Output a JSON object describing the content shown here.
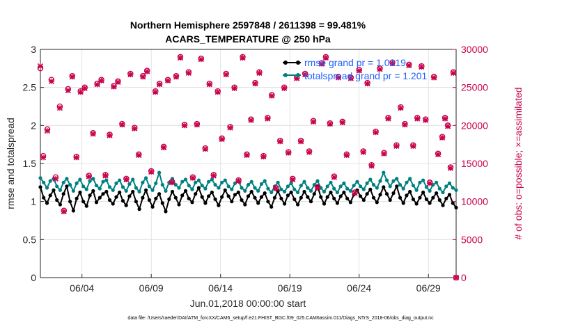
{
  "chart_data": {
    "type": "line",
    "title": "Northern Hemisphere 2597848 / 2611398 = 99.481%",
    "subtitle": "ACARS_TEMPERATURE @ 250 hPa",
    "xlabel": "Jun.01,2018 00:00:00 start",
    "ylabel": "rmse and totalspread",
    "ylabel_right": "# of obs: o=possible; ×=assimilated",
    "footnote": "data file: /Users/raeder/DAI/ATM_forcXX/CAM6_setup/f.e21.FHIST_BGC.f09_025.CAM6assim.011/Diags_NTrS_2018-06/obs_diag_output.nc",
    "xlim": [
      1,
      31
    ],
    "ylim": [
      0,
      3
    ],
    "ylim_right": [
      0,
      30000
    ],
    "x_ticks": [
      {
        "x": 4,
        "label": "06/04"
      },
      {
        "x": 9,
        "label": "06/09"
      },
      {
        "x": 14,
        "label": "06/14"
      },
      {
        "x": 19,
        "label": "06/19"
      },
      {
        "x": 24,
        "label": "06/24"
      },
      {
        "x": 29,
        "label": "06/29"
      }
    ],
    "y_ticks": [
      "0",
      "0.5",
      "1",
      "1.5",
      "2",
      "2.5",
      "3"
    ],
    "y_ticks_right": [
      "0",
      "5000",
      "10000",
      "15000",
      "20000",
      "25000",
      "30000"
    ],
    "grid": true,
    "legend_position": "top-right",
    "series": [
      {
        "name": "rmse",
        "legend": "rmse grand pr = 1.0219",
        "axis": "left",
        "color": "#000000",
        "values": [
          1.19,
          1.05,
          0.98,
          1.08,
          1.15,
          1.02,
          0.96,
          1.1,
          1.2,
          1.0,
          0.88,
          1.04,
          1.12,
          1.0,
          0.94,
          1.08,
          1.14,
          0.99,
          1.05,
          1.1,
          1.13,
          1.02,
          0.97,
          1.06,
          1.12,
          1.01,
          0.95,
          1.07,
          1.13,
          1.0,
          0.9,
          1.05,
          1.15,
          1.02,
          0.93,
          1.04,
          1.1,
          0.98,
          0.87,
          1.03,
          1.13,
          1.05,
          0.96,
          1.08,
          1.14,
          1.04,
          0.99,
          1.1,
          1.18,
          1.06,
          0.98,
          1.07,
          1.12,
          1.03,
          0.95,
          1.06,
          1.15,
          1.07,
          1.0,
          1.09,
          1.12,
          1.02,
          0.96,
          1.07,
          1.13,
          1.05,
          0.98,
          1.06,
          1.11,
          1.0,
          0.93,
          1.05,
          1.14,
          1.04,
          0.97,
          1.08,
          1.12,
          1.03,
          0.96,
          1.05,
          1.13,
          1.06,
          1.0,
          1.1,
          1.2,
          1.06,
          0.97,
          1.06,
          1.12,
          1.04,
          0.98,
          1.07,
          1.12,
          1.04,
          0.99,
          1.09,
          1.15,
          1.07,
          1.02,
          1.1,
          1.16,
          1.05,
          0.99,
          1.09,
          1.19,
          1.1,
          1.02,
          1.11,
          1.2,
          1.05,
          0.98,
          1.08,
          1.13,
          1.03,
          0.97,
          1.05,
          1.12,
          1.03,
          0.98,
          1.05,
          1.11,
          1.02,
          0.95,
          1.04,
          1.09,
          0.98,
          0.92
        ]
      },
      {
        "name": "totalspread",
        "legend": "totalspread grand pr = 1.201",
        "axis": "left",
        "color": "#008080",
        "values": [
          1.31,
          1.25,
          1.18,
          1.27,
          1.3,
          1.2,
          1.15,
          1.25,
          1.3,
          1.22,
          1.14,
          1.24,
          1.29,
          1.2,
          1.16,
          1.27,
          1.3,
          1.21,
          1.17,
          1.26,
          1.28,
          1.19,
          1.15,
          1.24,
          1.28,
          1.19,
          1.14,
          1.23,
          1.29,
          1.18,
          1.13,
          1.25,
          1.31,
          1.2,
          1.15,
          1.24,
          1.38,
          1.22,
          1.14,
          1.25,
          1.3,
          1.22,
          1.18,
          1.26,
          1.29,
          1.21,
          1.16,
          1.25,
          1.28,
          1.21,
          1.17,
          1.26,
          1.29,
          1.22,
          1.18,
          1.25,
          1.28,
          1.2,
          1.16,
          1.24,
          1.27,
          1.18,
          1.14,
          1.22,
          1.26,
          1.18,
          1.14,
          1.23,
          1.27,
          1.17,
          1.12,
          1.2,
          1.25,
          1.16,
          1.13,
          1.2,
          1.24,
          1.16,
          1.12,
          1.21,
          1.26,
          1.18,
          1.14,
          1.22,
          1.27,
          1.18,
          1.13,
          1.2,
          1.25,
          1.17,
          1.12,
          1.2,
          1.24,
          1.17,
          1.14,
          1.21,
          1.26,
          1.2,
          1.16,
          1.24,
          1.29,
          1.22,
          1.18,
          1.27,
          1.38,
          1.28,
          1.2,
          1.27,
          1.3,
          1.22,
          1.17,
          1.25,
          1.3,
          1.21,
          1.15,
          1.25,
          1.28,
          1.19,
          1.14,
          1.22,
          1.25,
          1.17,
          1.12,
          1.2,
          1.24,
          1.18,
          1.15
        ]
      },
      {
        "name": "obs_possible",
        "axis": "right",
        "marker": "o",
        "color": "#c8004b",
        "values": [
          27500,
          16000,
          19500,
          26000,
          13200,
          22500,
          8800,
          24800,
          26500,
          15900,
          24500,
          25000,
          13400,
          19000,
          25500,
          26000,
          13500,
          18800,
          25200,
          25800,
          20200,
          13000,
          26800,
          19700,
          16200,
          26500,
          27200,
          14000,
          24500,
          25500,
          17200,
          26000,
          12600,
          26500,
          29000,
          20100,
          27000,
          13200,
          20200,
          28800,
          17000,
          25500,
          13500,
          24500,
          18300,
          26800,
          19800,
          25000,
          12800,
          29000,
          16200,
          20800,
          25600,
          27000,
          16000,
          21000,
          24000,
          11800,
          18000,
          25000,
          16500,
          13000,
          26300,
          18000,
          26800,
          16600,
          20600,
          11900,
          28200,
          29000,
          20300,
          13300,
          26400,
          20500,
          16200,
          26300,
          11200,
          27300,
          16600,
          25600,
          14800,
          19200,
          27500,
          16400,
          21000,
          28300,
          17400,
          22400,
          20200,
          28000,
          17400,
          21000,
          27800,
          20800,
          12500,
          26400,
          16300,
          18500,
          21000,
          20000,
          14500,
          27000,
          0
        ]
      },
      {
        "name": "obs_assimilated",
        "axis": "right",
        "marker": "x",
        "color": "#c8004b",
        "values": [
          27800,
          15800,
          19300,
          25800,
          13000,
          22300,
          8700,
          24600,
          26400,
          15800,
          24400,
          24900,
          13300,
          18900,
          25400,
          25900,
          13400,
          18700,
          25100,
          25700,
          20100,
          12900,
          26700,
          19600,
          16100,
          26400,
          27100,
          13900,
          24400,
          25400,
          17100,
          25900,
          12500,
          26400,
          28900,
          20000,
          26900,
          13100,
          20100,
          28700,
          16900,
          25400,
          13400,
          24400,
          18200,
          26700,
          19700,
          24900,
          12700,
          28900,
          16100,
          20700,
          25500,
          26900,
          15900,
          20900,
          23900,
          11700,
          17900,
          24900,
          16400,
          12900,
          26200,
          17900,
          26700,
          16500,
          20500,
          11800,
          28100,
          28900,
          20200,
          13200,
          26300,
          20400,
          16100,
          26200,
          11100,
          27200,
          16500,
          25500,
          14700,
          19100,
          27400,
          16300,
          20900,
          28200,
          17300,
          22300,
          20100,
          27900,
          17300,
          20900,
          27700,
          20700,
          12400,
          26300,
          16200,
          18400,
          20900,
          19900,
          14400,
          26900,
          0
        ]
      },
      {
        "name": "obs_x",
        "axis": "right",
        "values": [
          1.0,
          1.2,
          1.5,
          1.8,
          2.1,
          2.4,
          2.7,
          3.0,
          3.3,
          3.6,
          3.9,
          4.2,
          4.5,
          4.8,
          5.1,
          5.4,
          5.7,
          6.0,
          6.3,
          6.6,
          6.9,
          7.2,
          7.5,
          7.8,
          8.1,
          8.4,
          8.7,
          9.0,
          9.3,
          9.6,
          9.9,
          10.2,
          10.5,
          10.8,
          11.1,
          11.4,
          11.7,
          12.0,
          12.3,
          12.6,
          12.9,
          13.2,
          13.5,
          13.8,
          14.1,
          14.4,
          14.7,
          15.0,
          15.3,
          15.6,
          15.9,
          16.2,
          16.5,
          16.8,
          17.1,
          17.4,
          17.7,
          18.0,
          18.3,
          18.6,
          18.9,
          19.2,
          19.5,
          19.8,
          20.1,
          20.4,
          20.7,
          21.0,
          21.3,
          21.6,
          21.9,
          22.2,
          22.5,
          22.8,
          23.1,
          23.4,
          23.7,
          24.0,
          24.3,
          24.6,
          24.9,
          25.2,
          25.5,
          25.8,
          26.1,
          26.4,
          26.7,
          27.0,
          27.3,
          27.6,
          27.9,
          28.2,
          28.5,
          28.8,
          29.1,
          29.4,
          29.7,
          30.0,
          30.2,
          30.4,
          30.6,
          30.8,
          31.0
        ]
      }
    ]
  }
}
